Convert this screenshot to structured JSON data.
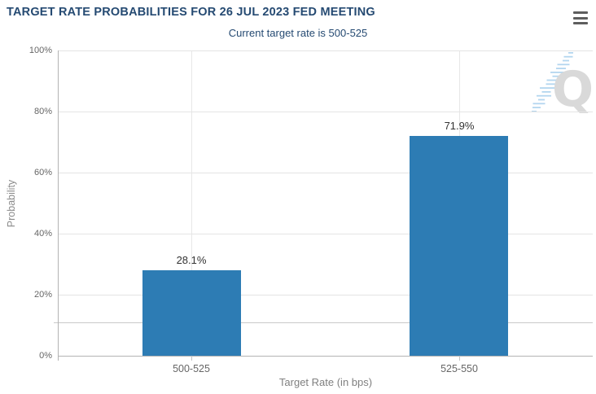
{
  "header": {
    "menu_tooltip": "Chart context menu"
  },
  "chart_data": {
    "type": "bar",
    "title": "TARGET RATE PROBABILITIES FOR 26 JUL 2023 FED MEETING",
    "subtitle": "Current target rate is 500-525",
    "categories": [
      "500-525",
      "525-550"
    ],
    "values": [
      28.1,
      71.9
    ],
    "data_labels": [
      "28.1%",
      "71.9%"
    ],
    "xlabel": "Target Rate (in bps)",
    "ylabel": "Probability",
    "ylim": [
      0,
      100
    ],
    "yticks": [
      0,
      20,
      40,
      60,
      80,
      100
    ],
    "ytick_labels": [
      "0%",
      "20%",
      "40%",
      "60%",
      "80%",
      "100%"
    ],
    "extra_gridline_value": 11,
    "grid": true,
    "legend": false,
    "bar_color": "#2d7cb4"
  },
  "watermark": {
    "letter": "Q"
  },
  "colors": {
    "title_text": "#254a72",
    "bar_fill": "#2d7cb4",
    "axis_line": "#b3b3b3",
    "gridline": "#e4e4e4",
    "extra_gridline": "#c9c9c9",
    "tick_label": "#666666",
    "axis_title": "#808080",
    "data_label": "#333333",
    "menu_icon": "#5e5e5e",
    "watermark_letter": "#d9d9d9",
    "watermark_dashes": "#b3d6ef"
  }
}
